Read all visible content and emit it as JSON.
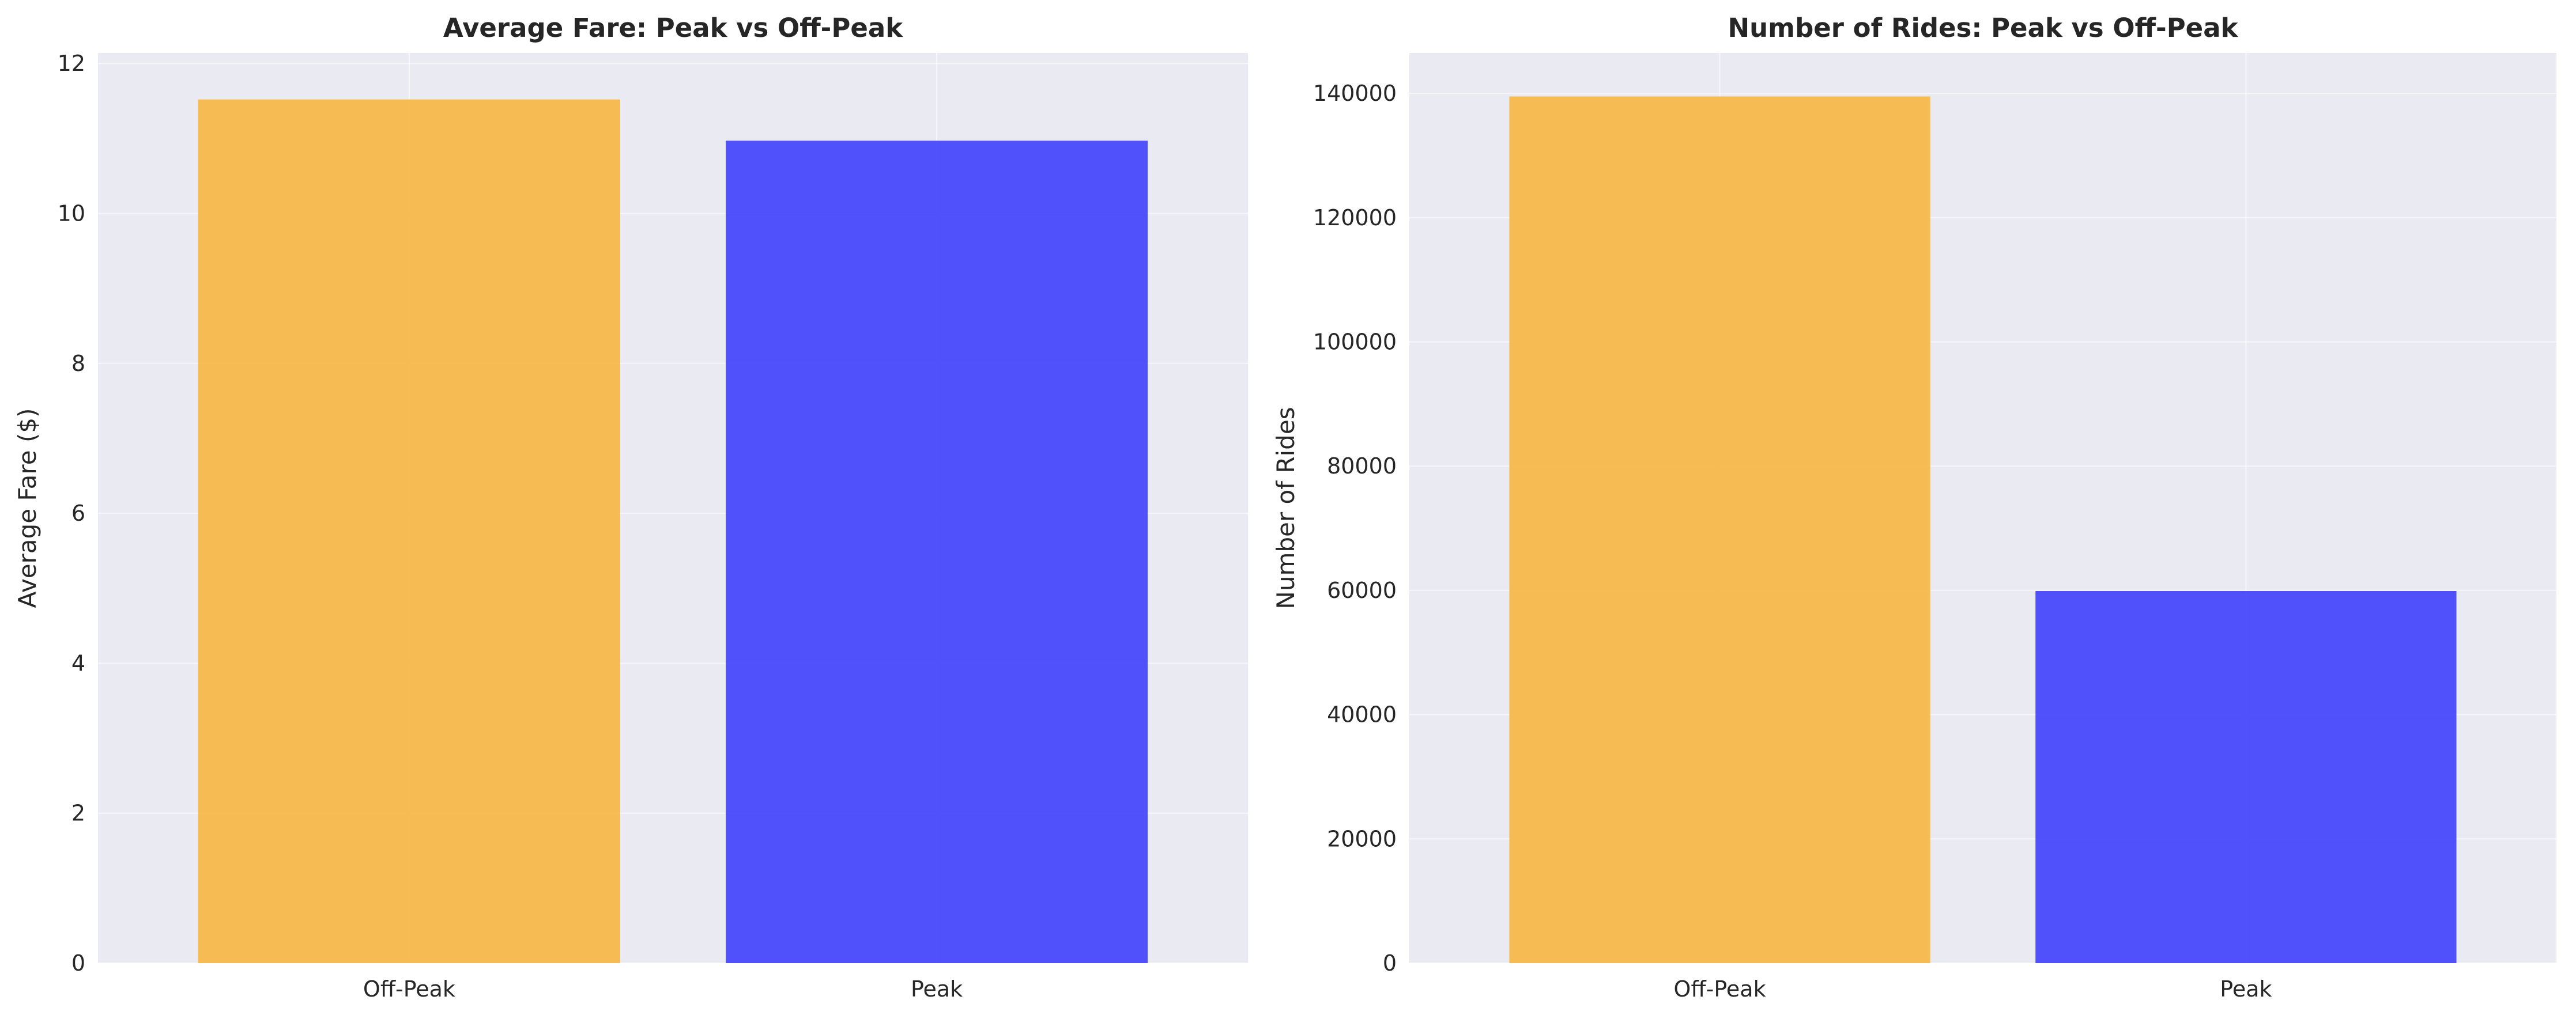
{
  "chart_data": [
    {
      "type": "bar",
      "title": "Average Fare: Peak vs Off-Peak",
      "xlabel": "",
      "ylabel": "Average Fare ($)",
      "categories": [
        "Off-Peak",
        "Peak"
      ],
      "values": [
        11.52,
        10.97
      ],
      "colors": [
        "#f7b84a",
        "#4949fc"
      ],
      "ylim": [
        0,
        12.14
      ],
      "yticks": [
        0,
        2,
        4,
        6,
        8,
        10,
        12
      ],
      "grid": true,
      "legend": "none"
    },
    {
      "type": "bar",
      "title": "Number of Rides: Peak vs Off-Peak",
      "xlabel": "",
      "ylabel": "Number of Rides",
      "categories": [
        "Off-Peak",
        "Peak"
      ],
      "values": [
        139500,
        59900
      ],
      "colors": [
        "#f7b84a",
        "#4949fc"
      ],
      "ylim": [
        0,
        146500
      ],
      "yticks": [
        0,
        20000,
        40000,
        60000,
        80000,
        100000,
        120000,
        140000
      ],
      "grid": true,
      "legend": "none"
    }
  ]
}
